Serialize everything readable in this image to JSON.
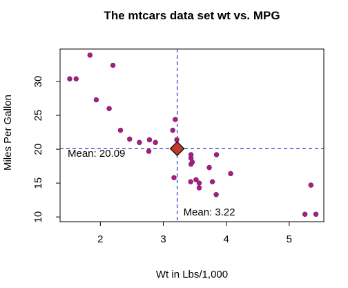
{
  "chart_data": {
    "type": "scatter",
    "title": "The mtcars data set wt vs. MPG",
    "xlabel": "Wt in Lbs/1,000",
    "ylabel": "Miles Per Gallon",
    "xlim": [
      1.36,
      5.55
    ],
    "ylim": [
      9.3,
      34.8
    ],
    "xticks": [
      2,
      3,
      4,
      5
    ],
    "yticks": [
      10,
      15,
      20,
      25,
      30
    ],
    "grid": false,
    "point_fill": "#b5177d",
    "point_stroke": "#6b2f7a",
    "mean_line_color": "#2233bb",
    "mean_marker_color": "#c0392b",
    "mean_x": 3.22,
    "mean_y": 20.09,
    "mean_x_label": "Mean: 3.22",
    "mean_y_label": "Mean: 20.09",
    "points": [
      {
        "x": 2.62,
        "y": 21.0
      },
      {
        "x": 2.875,
        "y": 21.0
      },
      {
        "x": 2.32,
        "y": 22.8
      },
      {
        "x": 3.215,
        "y": 21.4
      },
      {
        "x": 3.44,
        "y": 18.7
      },
      {
        "x": 3.46,
        "y": 18.1
      },
      {
        "x": 3.57,
        "y": 14.3
      },
      {
        "x": 3.19,
        "y": 24.4
      },
      {
        "x": 3.15,
        "y": 22.8
      },
      {
        "x": 3.44,
        "y": 19.2
      },
      {
        "x": 3.44,
        "y": 17.8
      },
      {
        "x": 4.07,
        "y": 16.4
      },
      {
        "x": 3.73,
        "y": 17.3
      },
      {
        "x": 3.78,
        "y": 15.2
      },
      {
        "x": 5.25,
        "y": 10.4
      },
      {
        "x": 5.424,
        "y": 10.4
      },
      {
        "x": 5.345,
        "y": 14.7
      },
      {
        "x": 2.2,
        "y": 32.4
      },
      {
        "x": 1.615,
        "y": 30.4
      },
      {
        "x": 1.835,
        "y": 33.9
      },
      {
        "x": 2.465,
        "y": 21.5
      },
      {
        "x": 3.52,
        "y": 15.5
      },
      {
        "x": 3.435,
        "y": 15.2
      },
      {
        "x": 3.84,
        "y": 13.3
      },
      {
        "x": 3.845,
        "y": 19.2
      },
      {
        "x": 1.935,
        "y": 27.3
      },
      {
        "x": 2.14,
        "y": 26.0
      },
      {
        "x": 1.513,
        "y": 30.4
      },
      {
        "x": 3.17,
        "y": 15.8
      },
      {
        "x": 2.77,
        "y": 19.7
      },
      {
        "x": 3.57,
        "y": 15.0
      },
      {
        "x": 2.78,
        "y": 21.4
      }
    ]
  }
}
